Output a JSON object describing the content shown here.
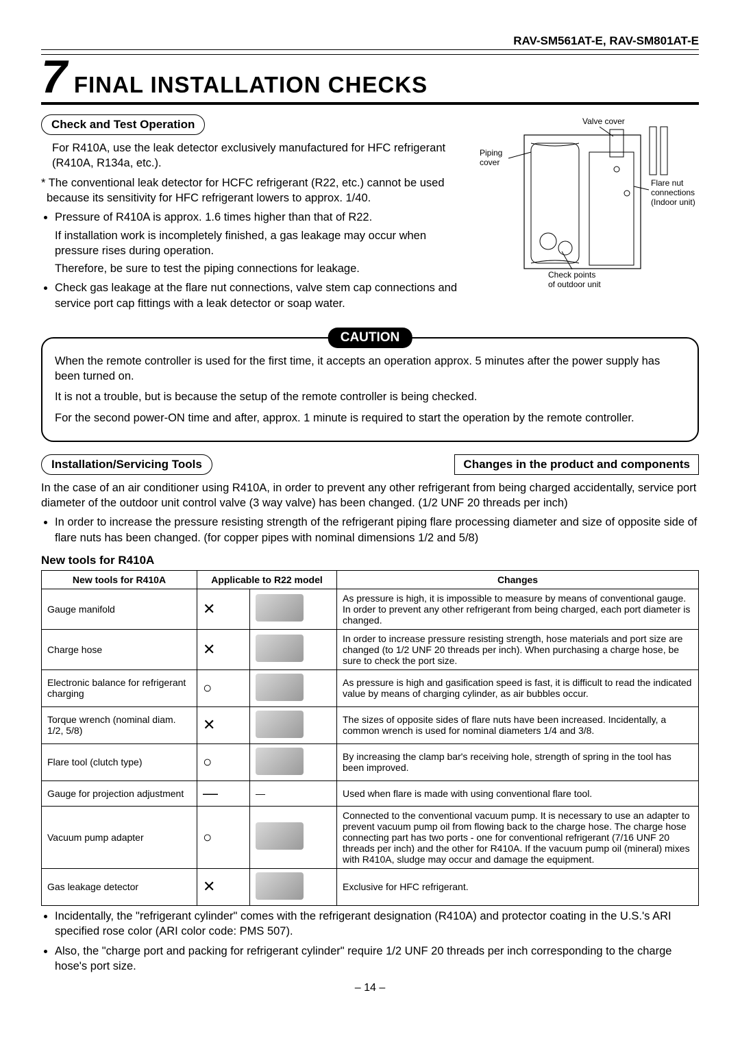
{
  "header": {
    "model_line": "RAV-SM561AT-E, RAV-SM801AT-E"
  },
  "section": {
    "number": "7",
    "title": "FINAL INSTALLATION CHECKS"
  },
  "check_test": {
    "heading": "Check and Test Operation",
    "p1": "For R410A, use the leak detector exclusively manufactured for HFC refrigerant (R410A, R134a, etc.).",
    "asterisk": "* The conventional leak detector for HCFC refrigerant (R22, etc.) cannot be used because its sensitivity for HFC refrigerant lowers to approx. 1/40.",
    "b1": "Pressure of R410A is approx. 1.6 times higher than that of R22.",
    "b1_cont1": "If installation work is incompletely finished, a gas leakage may occur when pressure rises during operation.",
    "b1_cont2": "Therefore, be sure to test the piping connections for leakage.",
    "b2": "Check gas leakage at the flare nut connections, valve stem cap connections and service port cap fittings with a leak detector or soap water."
  },
  "diagram": {
    "label_valve_cover": "Valve cover",
    "label_piping_cover": "Piping cover",
    "label_flare_nut": "Flare nut connections (Indoor unit)",
    "label_checkpoints": "Check points of outdoor unit"
  },
  "caution": {
    "badge": "CAUTION",
    "p1": "When the remote controller is used for the first time, it accepts an operation approx. 5 minutes after the power supply has been turned on.",
    "p2": "It is not a trouble, but is because the setup of the remote controller is being checked.",
    "p3": "For the second power-ON time and after, approx. 1 minute is required to start the operation by the remote controller."
  },
  "tools_section": {
    "heading_left": "Installation/Servicing Tools",
    "heading_right": "Changes in the product and components",
    "intro": "In the case of an air conditioner using R410A, in order to prevent any other refrigerant from being charged accidentally, service port diameter of the outdoor unit control valve (3 way valve) has been changed. (1/2 UNF 20 threads per inch)",
    "bullet": "In order to increase the pressure resisting strength of the refrigerant piping flare processing diameter and size of opposite side of flare nuts has been changed. (for copper pipes with nominal dimensions 1/2 and 5/8)",
    "table_heading": "New tools for R410A",
    "columns": {
      "c1": "New tools for R410A",
      "c2": "Applicable to R22 model",
      "c3": "Changes"
    }
  },
  "tools_table": [
    {
      "tool": "Gauge manifold",
      "applicable": "✕",
      "has_img": true,
      "changes": "As pressure is high, it is impossible to measure by means of conventional gauge. In order to prevent any other refrigerant from being charged, each port diameter is changed."
    },
    {
      "tool": "Charge hose",
      "applicable": "✕",
      "has_img": true,
      "changes": "In order to increase pressure resisting strength, hose materials and port size are changed (to 1/2 UNF 20 threads per inch). When purchasing a charge hose, be sure to check the port size."
    },
    {
      "tool": "Electronic balance for refrigerant charging",
      "applicable": "○",
      "has_img": true,
      "changes": "As pressure is high and gasification speed is fast, it is difficult to read the indicated value by means of charging cylinder, as air bubbles occur."
    },
    {
      "tool": "Torque wrench (nominal diam. 1/2, 5/8)",
      "applicable": "✕",
      "has_img": true,
      "changes": "The sizes of opposite sides of flare nuts have been increased. Incidentally, a common wrench is used for nominal diameters 1/4 and 3/8."
    },
    {
      "tool": "Flare tool (clutch type)",
      "applicable": "○",
      "has_img": true,
      "changes": "By increasing the clamp bar's receiving hole, strength of spring in the tool has been improved."
    },
    {
      "tool": "Gauge for projection adjustment",
      "applicable": "—",
      "has_img": false,
      "changes": "Used when flare is made with using conventional flare tool."
    },
    {
      "tool": "Vacuum pump adapter",
      "applicable": "○",
      "has_img": true,
      "changes": "Connected to the conventional vacuum pump. It is necessary to use an adapter to prevent vacuum pump oil from flowing back to the charge hose. The charge hose connecting part has two ports - one for conventional refrigerant (7/16 UNF 20 threads per inch) and the other for R410A. If the vacuum pump oil (mineral) mixes with R410A, sludge may occur and damage the equipment."
    },
    {
      "tool": "Gas leakage detector",
      "applicable": "✕",
      "has_img": true,
      "changes": "Exclusive for HFC refrigerant."
    }
  ],
  "footnotes": {
    "f1": "Incidentally, the \"refrigerant cylinder\" comes with the refrigerant designation (R410A) and protector coating in the U.S.'s ARI specified rose color (ARI color code: PMS 507).",
    "f2": "Also, the \"charge port and packing for refrigerant cylinder\" require 1/2 UNF 20 threads per inch corresponding to the charge hose's port size."
  },
  "page_number": "– 14 –"
}
